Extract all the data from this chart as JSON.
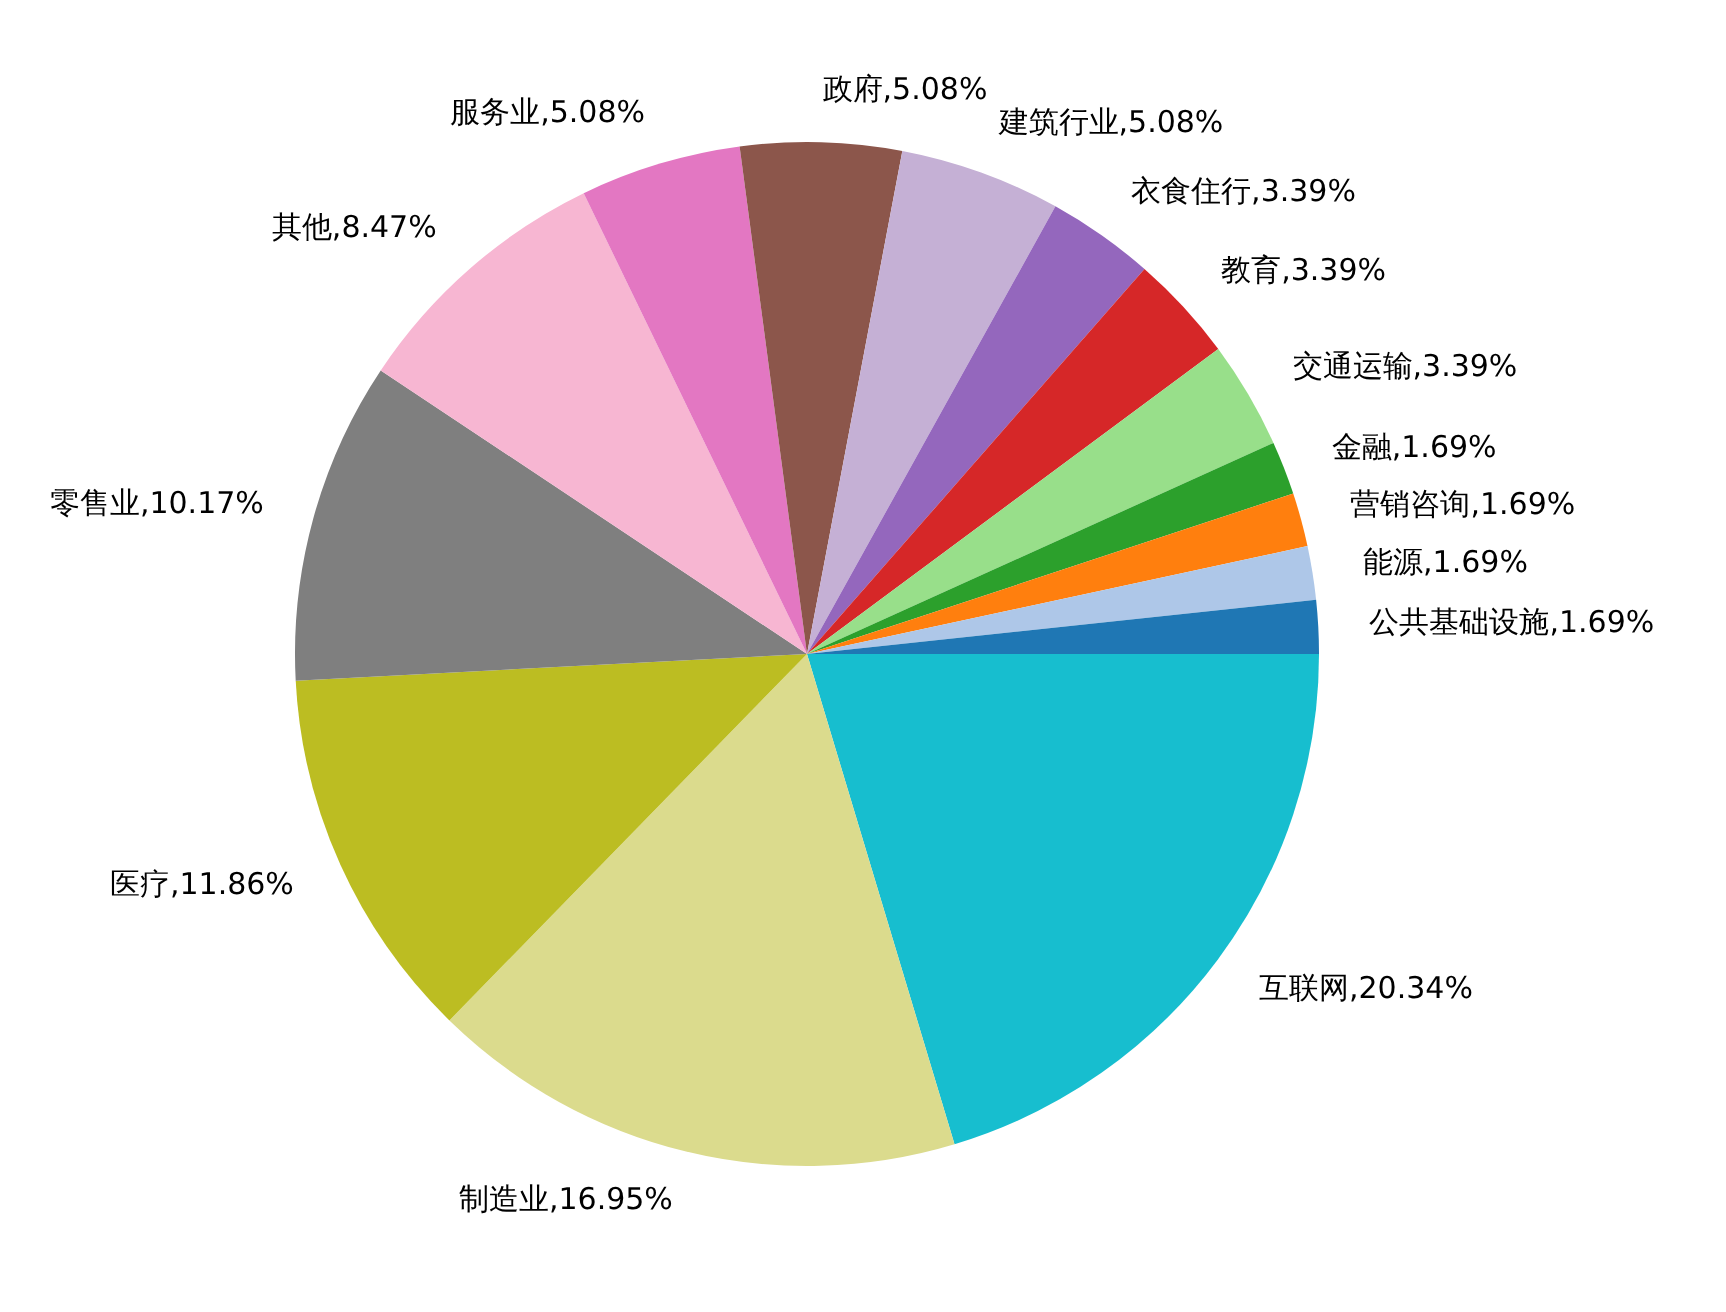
{
  "chart_data": {
    "type": "pie",
    "categories": [
      "公共基础设施",
      "能源",
      "营销咨询",
      "金融",
      "交通运输",
      "教育",
      "衣食住行",
      "建筑行业",
      "政府",
      "服务业",
      "其他",
      "零售业",
      "医疗",
      "制造业",
      "互联网"
    ],
    "values": [
      1.69,
      1.69,
      1.69,
      1.69,
      3.39,
      3.39,
      3.39,
      5.08,
      5.08,
      5.08,
      8.47,
      10.17,
      11.86,
      16.95,
      20.34
    ],
    "colors": [
      "#1f77b4",
      "#aec7e8",
      "#ff7f0e",
      "#2ca02c",
      "#98df8a",
      "#d62728",
      "#9467bd",
      "#c5b0d5",
      "#8c564b",
      "#e377c2",
      "#f7b6d2",
      "#7f7f7f",
      "#bcbd22",
      "#dbdb8d",
      "#17becf"
    ],
    "value_labels": [
      "1.69%",
      "1.69%",
      "1.69%",
      "1.69%",
      "3.39%",
      "3.39%",
      "3.39%",
      "5.08%",
      "5.08%",
      "5.08%",
      "8.47%",
      "10.17%",
      "11.86%",
      "16.95%",
      "20.34%"
    ]
  }
}
